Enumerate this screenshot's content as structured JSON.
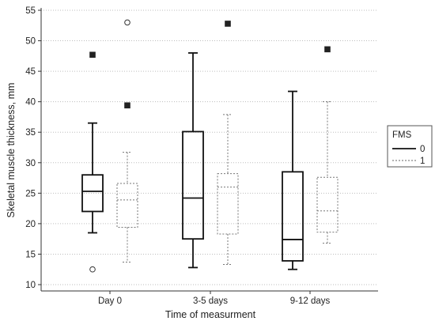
{
  "chart_data": {
    "type": "box",
    "xlabel": "Time of measurment",
    "ylabel": "Skeletal muscle thickness, mm",
    "ylim": [
      10,
      55
    ],
    "yticks": [
      10,
      15,
      20,
      25,
      30,
      35,
      40,
      45,
      50,
      55
    ],
    "grid": "horizontal dotted",
    "categories": [
      "Day 0",
      "3-5 days",
      "9-12 days"
    ],
    "legend": {
      "title": "FMS",
      "placement": "right"
    },
    "series": [
      {
        "name": "0",
        "line_style": "solid",
        "outlier_marker": "filled-square",
        "boxes": [
          {
            "whisker_low": 18.5,
            "q1": 22.0,
            "median": 25.3,
            "q3": 28.0,
            "whisker_high": 36.5,
            "outliers": [
              12.5,
              47.7
            ]
          },
          {
            "whisker_low": 12.8,
            "q1": 17.5,
            "median": 24.2,
            "q3": 35.1,
            "whisker_high": 48.0,
            "outliers": []
          },
          {
            "whisker_low": 12.5,
            "q1": 13.9,
            "median": 17.4,
            "q3": 28.5,
            "whisker_high": 41.7,
            "outliers": []
          }
        ]
      },
      {
        "name": "1",
        "line_style": "dashed",
        "outlier_marker": "open-circle",
        "boxes": [
          {
            "whisker_low": 13.7,
            "q1": 19.4,
            "median": 23.9,
            "q3": 26.6,
            "whisker_high": 31.7,
            "outliers": [
              39.4,
              53.0
            ]
          },
          {
            "whisker_low": 13.3,
            "q1": 18.3,
            "median": 26.0,
            "q3": 28.2,
            "whisker_high": 37.9,
            "outliers": [
              52.8
            ]
          },
          {
            "whisker_low": 16.8,
            "q1": 18.6,
            "median": 22.1,
            "q3": 27.6,
            "whisker_high": 40.0,
            "outliers": [
              48.6
            ]
          }
        ]
      }
    ]
  }
}
